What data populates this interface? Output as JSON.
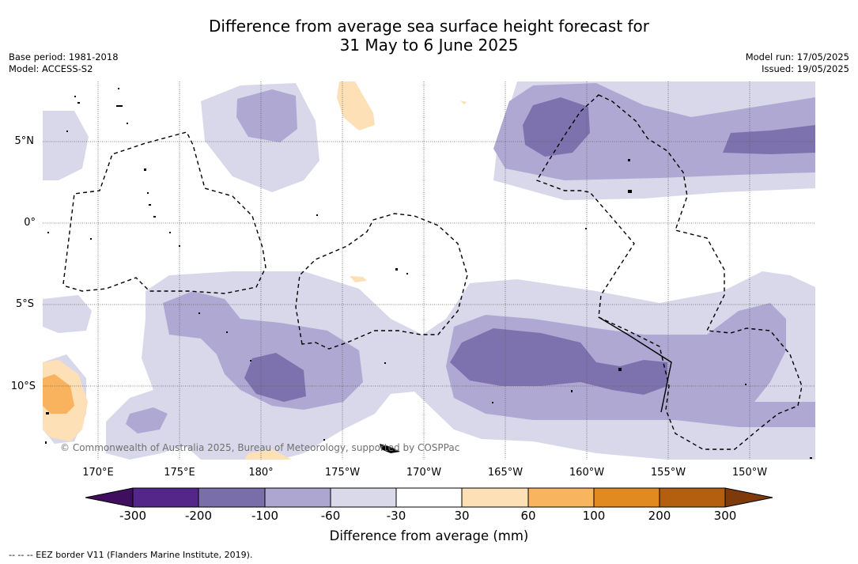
{
  "title": {
    "line1": "Difference from average sea surface height forecast for",
    "line2": "31 May to 6 June 2025"
  },
  "meta_left": {
    "base_period": "Base period: 1981-2018",
    "model": "Model: ACCESS-S2"
  },
  "meta_right": {
    "model_run": "Model run: 17/05/2025",
    "issued": "Issued: 19/05/2025"
  },
  "map": {
    "latitude_labels": [
      "5°N",
      "0°",
      "5°S",
      "10°S"
    ],
    "longitude_labels": [
      "170°E",
      "175°E",
      "180°",
      "175°W",
      "170°W",
      "165°W",
      "160°W",
      "155°W",
      "150°W"
    ],
    "extent": {
      "lon_min": 167,
      "lon_max": 214.3,
      "lat_min": -14.3,
      "lat_max": 8.7
    },
    "copyright": "© Commonwealth of Australia 2025, Bureau of Meteorology, supported by COSPPac",
    "colors": {
      "neg_30_60": "#d8d8ea",
      "neg_60_100": "#afa8d2",
      "neg_100_200": "#7e72ae",
      "pos_30_60": "#fde0b6",
      "pos_60_100": "#f9b35e"
    }
  },
  "colorbar": {
    "label": "Difference from average (mm)",
    "ticks": [
      "-300",
      "-200",
      "-100",
      "-60",
      "-30",
      "30",
      "60",
      "100",
      "200",
      "300"
    ],
    "colors": [
      "#3f0e5e",
      "#55268a",
      "#7a6eaa",
      "#aca6d0",
      "#d9d9ea",
      "#ffffff",
      "#fde0b6",
      "#f9b45f",
      "#e08a1f",
      "#b45f10",
      "#7f3a0c"
    ]
  },
  "footer": {
    "eez_note": "--  --  -- EEZ border V11 (Flanders Marine Institute, 2019)."
  }
}
